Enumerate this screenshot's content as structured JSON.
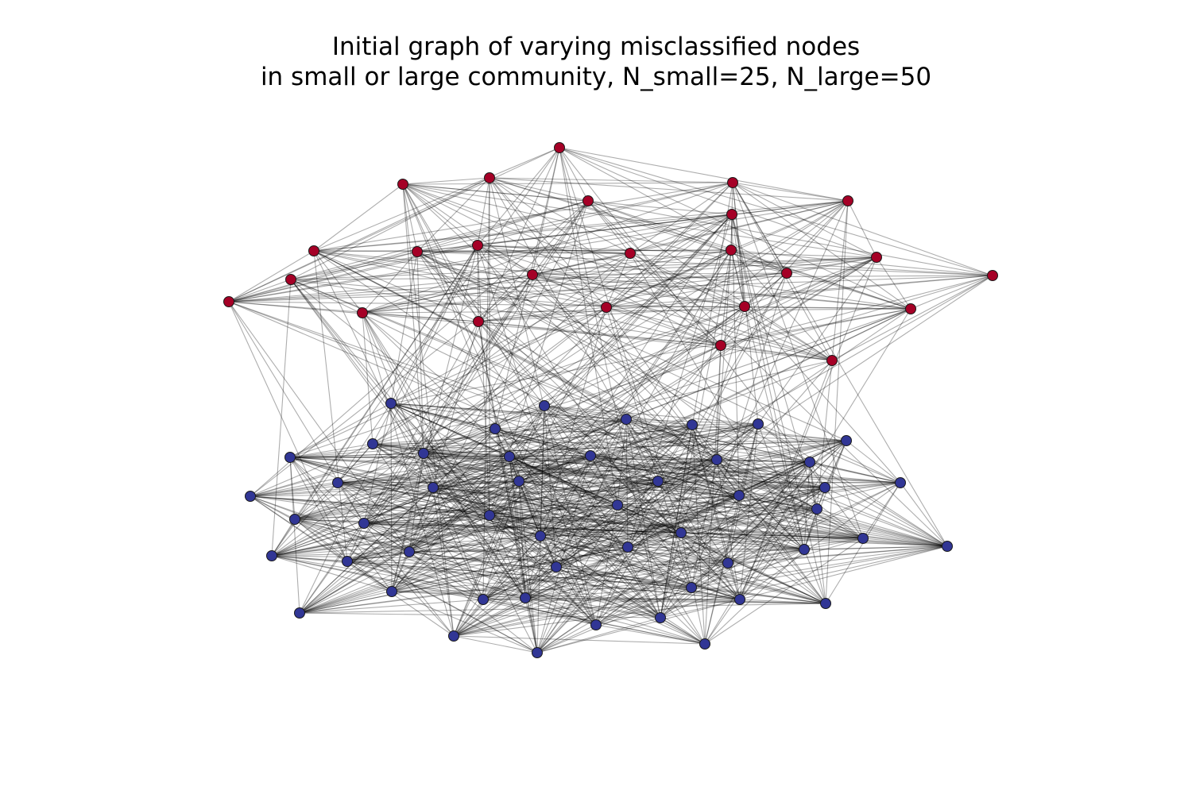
{
  "title": {
    "line1": "Initial graph of varying misclassified nodes",
    "line2": "in small or large community, N_small=25, N_large=50"
  },
  "graph": {
    "colors": {
      "small": "#a50026",
      "large": "#313695",
      "edge": "#000000",
      "node_stroke": "#1a1a1a"
    },
    "communities": [
      {
        "id": "small",
        "size": 25
      },
      {
        "id": "large",
        "size": 50
      }
    ]
  }
}
